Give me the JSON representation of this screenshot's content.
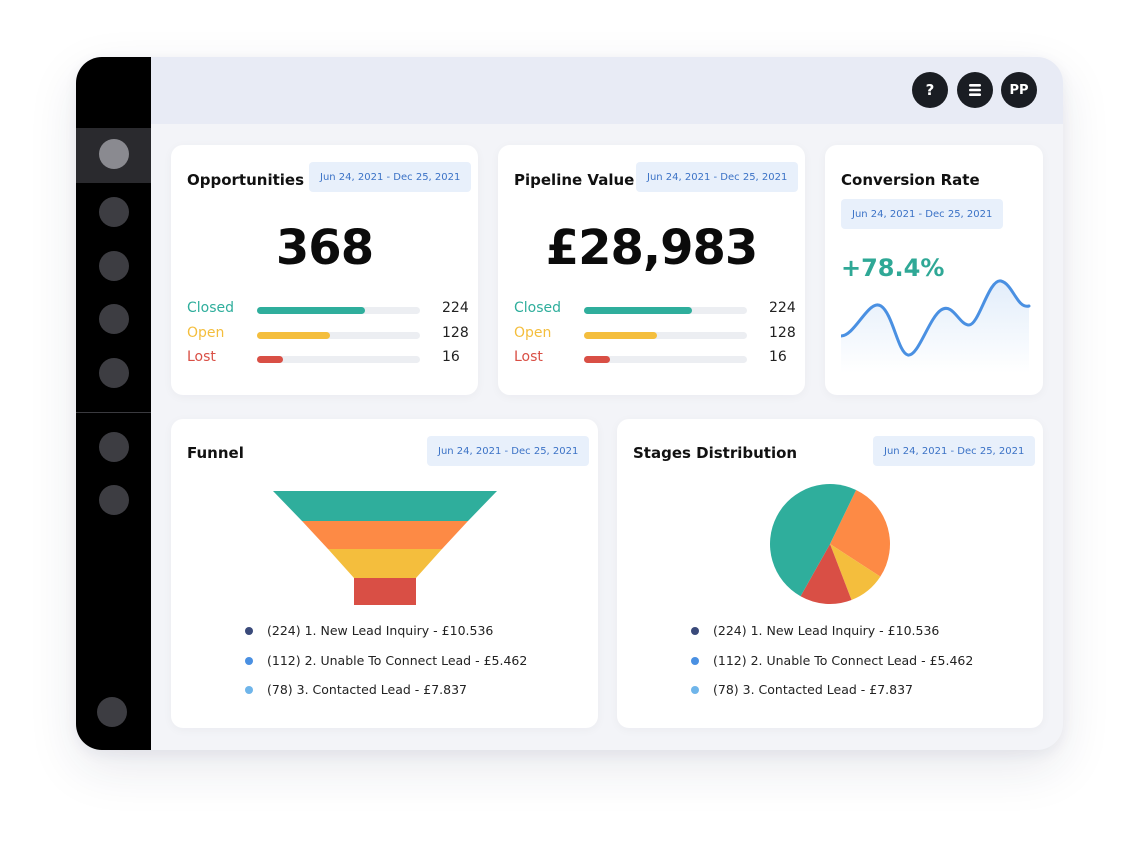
{
  "header": {
    "help_label": "?",
    "menu_label": "☰",
    "avatar_initials": "PP"
  },
  "sidebar": {
    "items": [
      {
        "name": "nav-item-1",
        "active": true
      },
      {
        "name": "nav-item-2",
        "active": false
      },
      {
        "name": "nav-item-3",
        "active": false
      },
      {
        "name": "nav-item-4",
        "active": false
      },
      {
        "name": "nav-item-5",
        "active": false
      },
      {
        "name": "nav-item-6",
        "active": false
      },
      {
        "name": "nav-item-7",
        "active": false
      },
      {
        "name": "nav-item-bottom",
        "active": false
      }
    ]
  },
  "date_range": "Jun 24, 2021 -  Dec 25, 2021",
  "opportunities": {
    "title": "Opportunities",
    "total": "368",
    "rows": [
      {
        "label": "Closed",
        "value": "224",
        "fraction": 0.66,
        "color": "#2fae9c"
      },
      {
        "label": "Open",
        "value": "128",
        "fraction": 0.45,
        "color": "#f4be3d"
      },
      {
        "label": "Lost",
        "value": "16",
        "fraction": 0.16,
        "color": "#d94f45"
      }
    ]
  },
  "pipeline": {
    "title": "Pipeline Value",
    "total": "£28,983",
    "rows": [
      {
        "label": "Closed",
        "value": "224",
        "fraction": 0.66,
        "color": "#2fae9c"
      },
      {
        "label": "Open",
        "value": "128",
        "fraction": 0.45,
        "color": "#f4be3d"
      },
      {
        "label": "Lost",
        "value": "16",
        "fraction": 0.16,
        "color": "#d94f45"
      }
    ]
  },
  "conversion": {
    "title": "Conversion Rate",
    "value": "+78.4%",
    "sparkline_color": "#4a90e2"
  },
  "funnel": {
    "title": "Funnel",
    "stage_colors": [
      "#2fae9c",
      "#fd8a45",
      "#f4be3d",
      "#d94f45"
    ]
  },
  "stages": {
    "title": "Stages Distribution",
    "slices": [
      {
        "value": 27,
        "color": "#fd8a45"
      },
      {
        "value": 10,
        "color": "#f4be3d"
      },
      {
        "value": 14,
        "color": "#d94f45"
      },
      {
        "value": 49,
        "color": "#2fae9c"
      }
    ]
  },
  "legend": [
    {
      "text": "(224) 1. New Lead Inquiry - £10.536",
      "color": "#3a4a7a"
    },
    {
      "text": "(112) 2. Unable To Connect Lead - £5.462",
      "color": "#4a90e2"
    },
    {
      "text": "(78) 3. Contacted Lead - £7.837",
      "color": "#6fb5ea"
    }
  ]
}
